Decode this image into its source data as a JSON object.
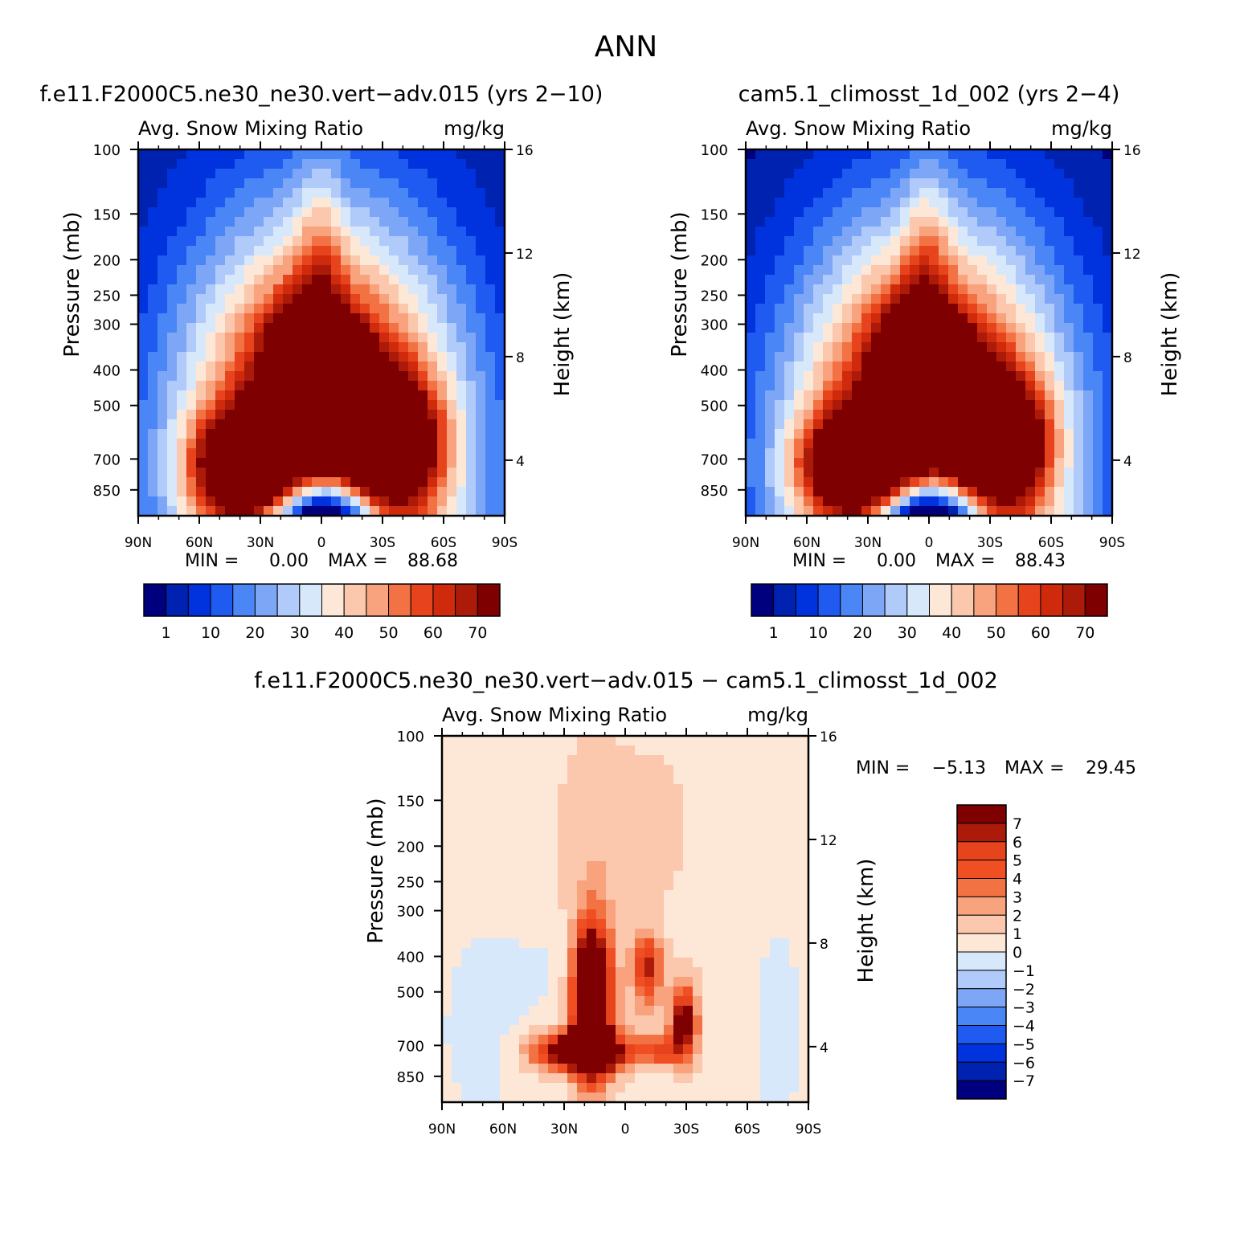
{
  "figure_title": "ANN",
  "colors": {
    "seq": [
      "#00007f",
      "#0022b0",
      "#0033dd",
      "#1f5bf0",
      "#4a86f5",
      "#7ea6f7",
      "#b0caf9",
      "#d8e8fb",
      "#fde8d8",
      "#fbc7ad",
      "#f8a27e",
      "#f27244",
      "#e7431c",
      "#d02a0c",
      "#ac1b0a",
      "#7f0000"
    ],
    "div": [
      "#00007f",
      "#0022b0",
      "#0033dd",
      "#1f5bf0",
      "#4a86f5",
      "#7ea6f7",
      "#b0caf9",
      "#d8e8fb",
      "#fde8d8",
      "#fbc7ad",
      "#f8a27e",
      "#f27244",
      "#f04f24",
      "#e7431c",
      "#ac1b0a",
      "#7f0000"
    ]
  },
  "chart_data": [
    {
      "type": "heatmap",
      "title": "f.e11.F2000C5.ne30_ne30.vert−adv.015 (yrs 2−10)",
      "variable": "Avg. Snow Mixing Ratio",
      "units": "mg/kg",
      "xlabel": "",
      "ylabel": "Pressure (mb)",
      "ylabel_right": "Height (km)",
      "x_ticks": [
        "90N",
        "60N",
        "30N",
        "0",
        "30S",
        "60S",
        "90S"
      ],
      "y_ticks": [
        100,
        150,
        200,
        250,
        300,
        400,
        500,
        700,
        850
      ],
      "y_right_ticks": [
        16,
        12,
        8,
        4
      ],
      "xlim": [
        90,
        -90
      ],
      "ylim": [
        100,
        1000
      ],
      "y_scale": "log",
      "min_label": "MIN =",
      "min_value": "0.00",
      "max_label": "MAX =",
      "max_value": "88.68",
      "colorbar_labels": [
        "1",
        "10",
        "20",
        "30",
        "40",
        "50",
        "60",
        "70"
      ],
      "colorbar_orientation": "horizontal"
    },
    {
      "type": "heatmap",
      "title": "cam5.1_climosst_1d_002 (yrs 2−4)",
      "variable": "Avg. Snow Mixing Ratio",
      "units": "mg/kg",
      "xlabel": "",
      "ylabel": "Pressure (mb)",
      "ylabel_right": "Height (km)",
      "x_ticks": [
        "90N",
        "60N",
        "30N",
        "0",
        "30S",
        "60S",
        "90S"
      ],
      "y_ticks": [
        100,
        150,
        200,
        250,
        300,
        400,
        500,
        700,
        850
      ],
      "y_right_ticks": [
        16,
        12,
        8,
        4
      ],
      "xlim": [
        90,
        -90
      ],
      "ylim": [
        100,
        1000
      ],
      "y_scale": "log",
      "min_label": "MIN =",
      "min_value": "0.00",
      "max_label": "MAX =",
      "max_value": "88.43",
      "colorbar_labels": [
        "1",
        "10",
        "20",
        "30",
        "40",
        "50",
        "60",
        "70"
      ],
      "colorbar_orientation": "horizontal"
    },
    {
      "type": "heatmap",
      "title": "f.e11.F2000C5.ne30_ne30.vert−adv.015 − cam5.1_climosst_1d_002",
      "variable": "Avg. Snow Mixing Ratio",
      "units": "mg/kg",
      "xlabel": "",
      "ylabel": "Pressure (mb)",
      "ylabel_right": "Height (km)",
      "x_ticks": [
        "90N",
        "60N",
        "30N",
        "0",
        "30S",
        "60S",
        "90S"
      ],
      "y_ticks": [
        100,
        150,
        200,
        250,
        300,
        400,
        500,
        700,
        850
      ],
      "y_right_ticks": [
        16,
        12,
        8,
        4
      ],
      "xlim": [
        90,
        -90
      ],
      "ylim": [
        100,
        1000
      ],
      "y_scale": "log",
      "min_label": "MIN =",
      "min_value": "−5.13",
      "max_label": "MAX =",
      "max_value": "29.45",
      "colorbar_labels": [
        "7",
        "6",
        "5",
        "4",
        "3",
        "2",
        "1",
        "0",
        "−1",
        "−2",
        "−3",
        "−4",
        "−5",
        "−6",
        "−7"
      ],
      "colorbar_orientation": "vertical"
    }
  ]
}
